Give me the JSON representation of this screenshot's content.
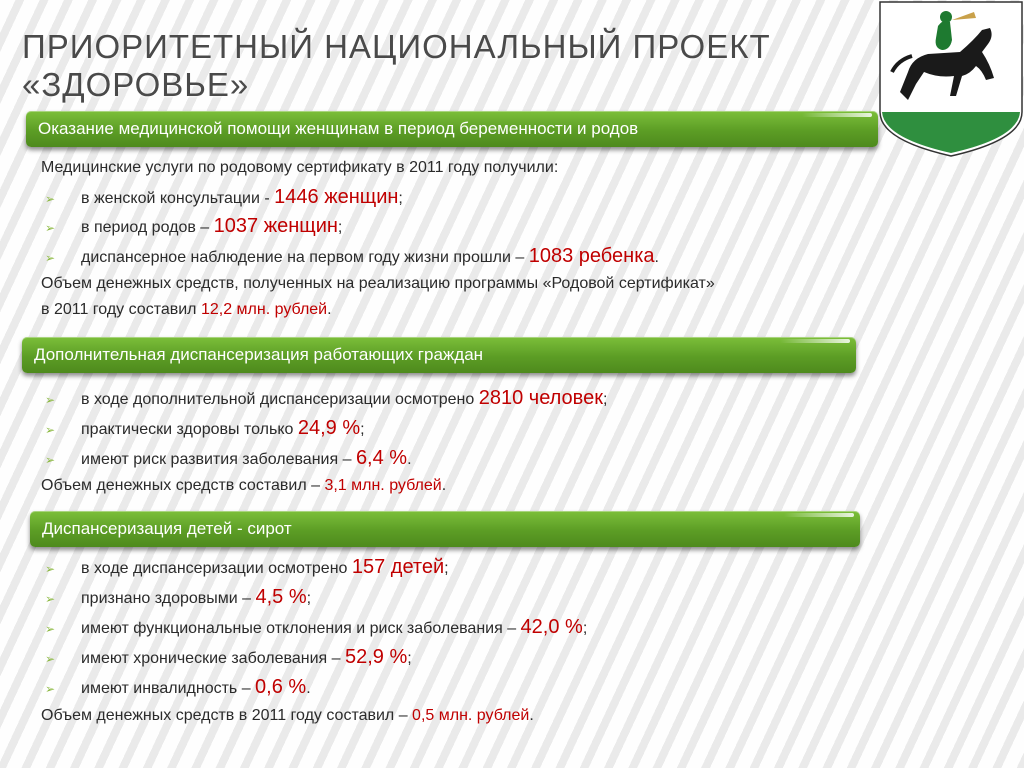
{
  "title": "ПРИОРИТЕТНЫЙ  НАЦИОНАЛЬНЫЙ  ПРОЕКТ  «ЗДОРОВЬЕ»",
  "sections": [
    {
      "header": "Оказание медицинской помощи женщинам в период беременности и родов",
      "intro": "Медицинские  услуги по родовому сертификату в 2011 году получили:",
      "bullets": [
        {
          "text": "в женской консультации - ",
          "value": "1446 женщин",
          "tail": ";"
        },
        {
          "text": "в период родов – ",
          "value": "1037 женщин",
          "tail": ";"
        },
        {
          "text": "диспансерное наблюдение на первом году жизни прошли – ",
          "value": "1083 ребенка",
          "tail": "."
        }
      ],
      "footer_line1": "Объем денежных средств, полученных  на реализацию программы «Родовой сертификат»",
      "footer_line2": "в 2011 году составил ",
      "footer_value": "12,2 млн. рублей",
      "footer_tail": "."
    },
    {
      "header": "Дополнительная диспансеризация работающих граждан",
      "bullets": [
        {
          "text": "в ходе дополнительной диспансеризации осмотрено ",
          "value": "2810 человек",
          "tail": ";"
        },
        {
          "text": "практически здоровы только ",
          "value": "24,9 %",
          "tail": ";"
        },
        {
          "text": "имеют риск развития заболевания – ",
          "value": "6,4 %",
          "tail": "."
        }
      ],
      "footer_text": "Объем денежных средств составил – ",
      "footer_value": "3,1 млн. рублей",
      "footer_tail": "."
    },
    {
      "header": "Диспансеризация   детей  -   сирот",
      "bullets": [
        {
          "text": "в ходе диспансеризации осмотрено ",
          "value": "157 детей",
          "tail": ";"
        },
        {
          "text": "признано здоровыми – ",
          "value": "4,5 %",
          "tail": ";"
        },
        {
          "text": "имеют функциональные отклонения и риск заболевания – ",
          "value": "42,0 %",
          "tail": ";"
        },
        {
          "text": "имеют хронические заболевания – ",
          "value": "52,9 %",
          "tail": ";"
        },
        {
          "text": "имеют инвалидность – ",
          "value": "0,6 %",
          "tail": "."
        }
      ],
      "footer_text": "Объем денежных средств в 2011 году составил – ",
      "footer_value": "0,5 млн. рублей",
      "footer_tail": "."
    }
  ],
  "colors": {
    "accent_green": "#5c9d25",
    "value_red": "#c00000",
    "bullet_green": "#8ab83e"
  },
  "icons": {
    "crest": "coat-of-arms-horseman-icon",
    "bullet": "arrow-bullet-icon"
  }
}
